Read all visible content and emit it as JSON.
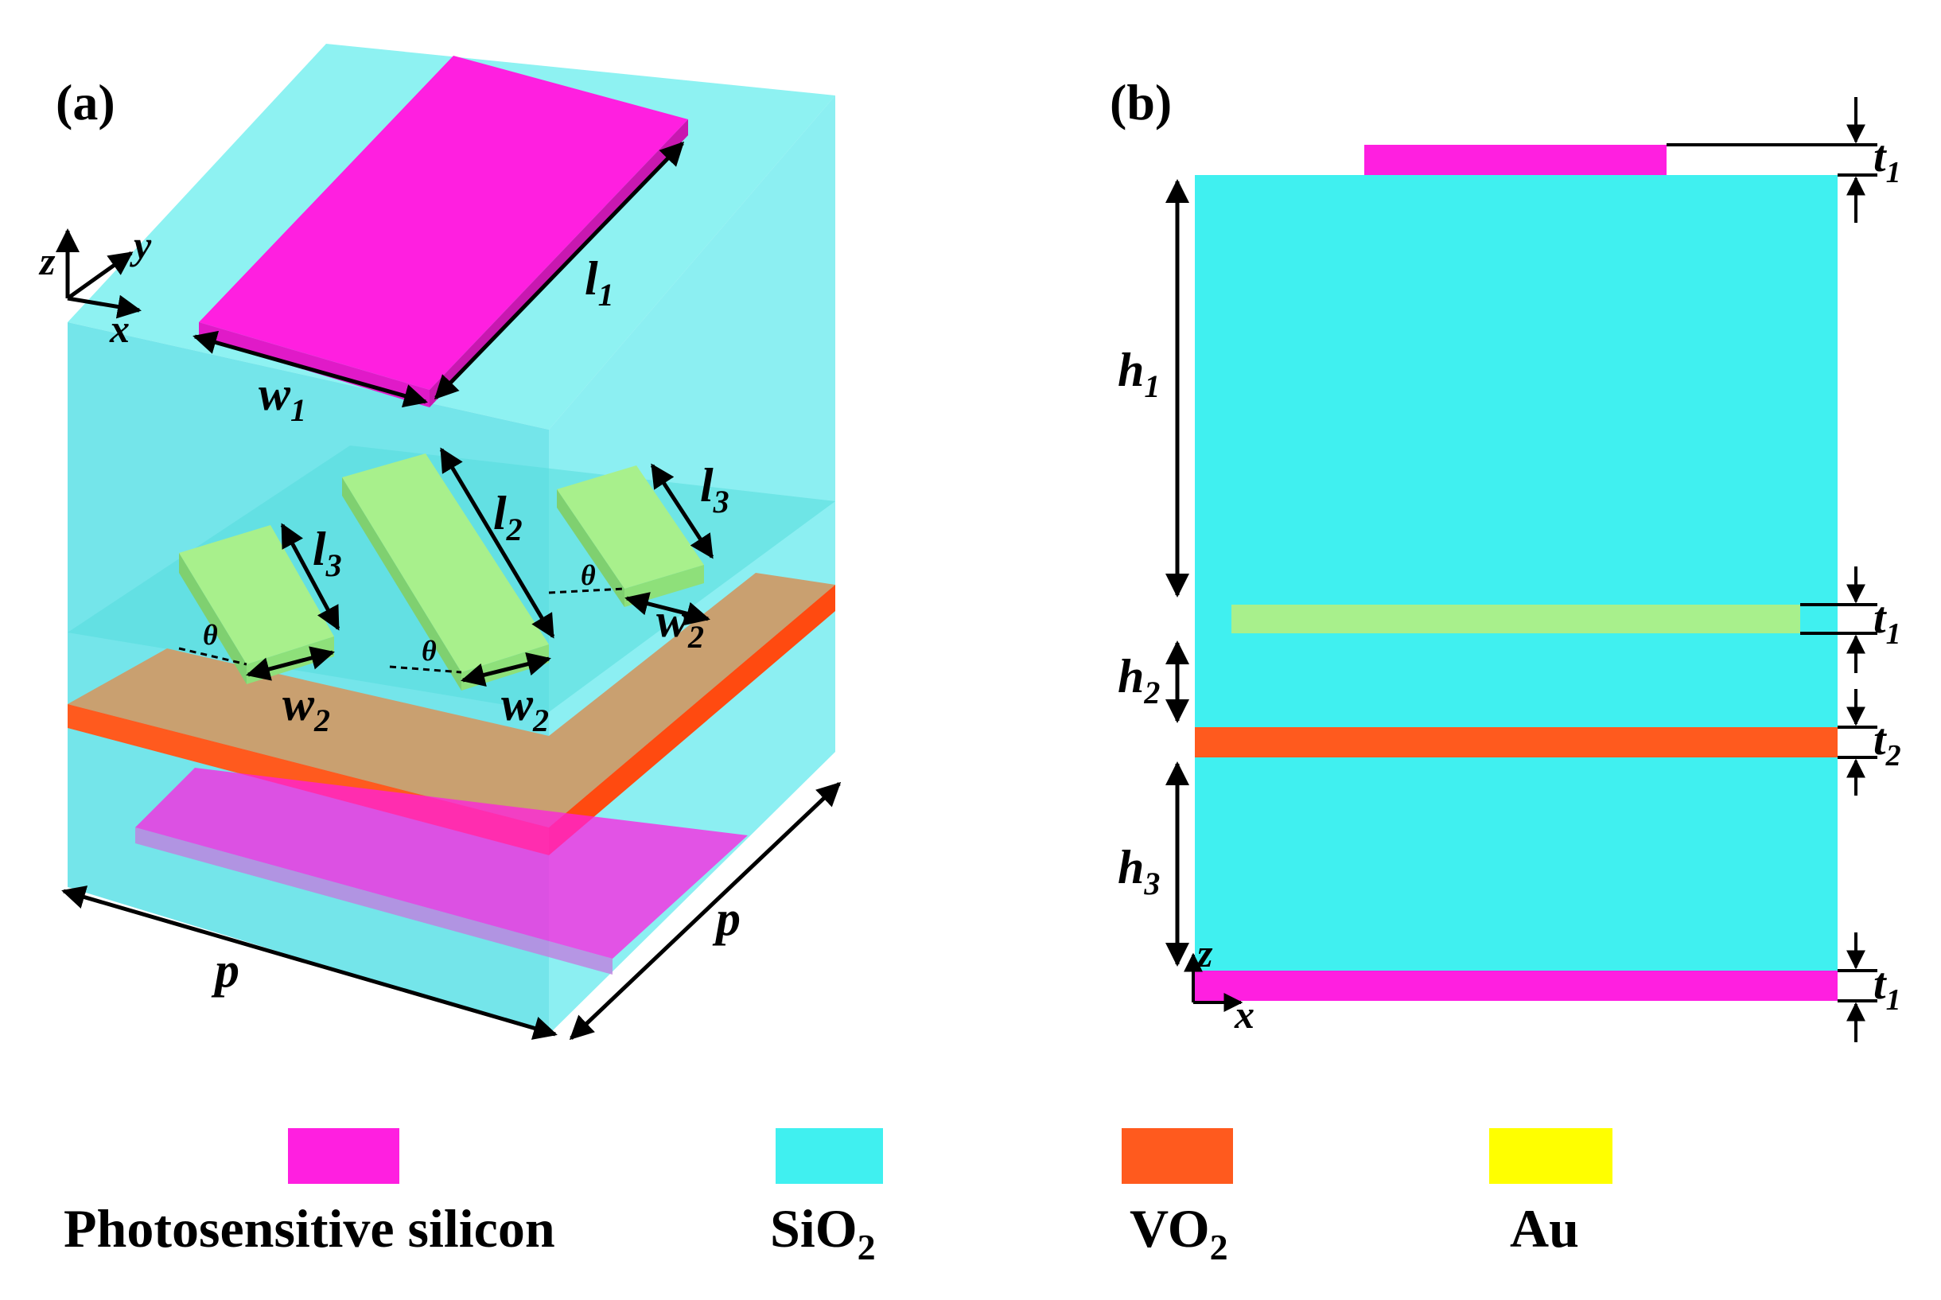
{
  "panels": {
    "a": {
      "label": "(a)"
    },
    "b": {
      "label": "(b)"
    }
  },
  "panel_a": {
    "axes": {
      "z": "z",
      "y": "y",
      "x": "x"
    },
    "dimensions": {
      "l1": {
        "base": "l",
        "sub": "1"
      },
      "w1": {
        "base": "w",
        "sub": "1"
      },
      "l2": {
        "base": "l",
        "sub": "2"
      },
      "l3a": {
        "base": "l",
        "sub": "3"
      },
      "l3b": {
        "base": "l",
        "sub": "3"
      },
      "w2a": {
        "base": "w",
        "sub": "2"
      },
      "w2b": {
        "base": "w",
        "sub": "2"
      },
      "w2c": {
        "base": "w",
        "sub": "2"
      },
      "theta": "θ",
      "p_front": "p",
      "p_side": "p"
    }
  },
  "panel_b": {
    "axes": {
      "z": "z",
      "x": "x"
    },
    "dimensions": {
      "h1": {
        "base": "h",
        "sub": "1"
      },
      "h2": {
        "base": "h",
        "sub": "2"
      },
      "h3": {
        "base": "h",
        "sub": "3"
      },
      "t1_top": {
        "base": "t",
        "sub": "1"
      },
      "t1_mid": {
        "base": "t",
        "sub": "1"
      },
      "t2": {
        "base": "t",
        "sub": "2"
      },
      "t1_bot": {
        "base": "t",
        "sub": "1"
      }
    }
  },
  "colors": {
    "photosensitive_silicon": "#ff1fe0",
    "sio2": "#40f0f0",
    "vo2": "#ff5a1e",
    "au": "#ffff00",
    "resonator_green": "#a8f08c"
  },
  "legend": [
    {
      "name": "Photosensitive silicon",
      "color": "#ff1fe0"
    },
    {
      "name": "SiO",
      "sub": "2",
      "color": "#40f0f0"
    },
    {
      "name": "VO",
      "sub": "2",
      "color": "#ff5a1e"
    },
    {
      "name": "Au",
      "color": "#ffff00"
    }
  ]
}
